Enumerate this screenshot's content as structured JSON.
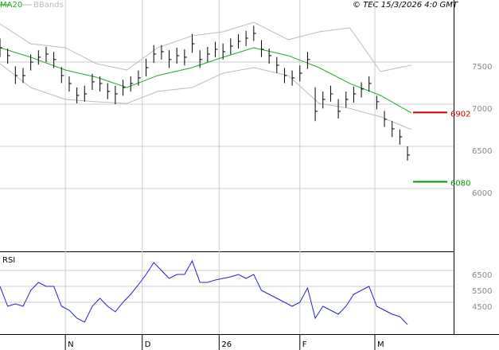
{
  "chart_data": [
    {
      "type": "ohlc",
      "note": "© TEC 15/3/2026 4:0 GMT",
      "x": [
        0,
        2,
        4,
        6,
        8,
        10,
        12,
        14,
        16,
        18,
        20,
        22,
        24,
        26,
        28,
        30,
        32,
        34,
        36,
        38,
        40,
        42,
        44,
        46,
        48,
        50,
        52,
        54,
        56,
        58,
        60,
        62,
        64,
        66,
        68,
        70,
        72,
        74,
        76,
        78,
        80,
        82,
        84,
        86,
        88,
        90,
        92,
        94,
        96,
        98,
        100,
        102,
        104,
        106
      ],
      "high": [
        7780,
        7660,
        7450,
        7430,
        7590,
        7640,
        7680,
        7620,
        7440,
        7330,
        7200,
        7220,
        7360,
        7330,
        7250,
        7220,
        7290,
        7330,
        7400,
        7540,
        7700,
        7700,
        7640,
        7670,
        7650,
        7830,
        7640,
        7680,
        7740,
        7720,
        7780,
        7830,
        7870,
        7930,
        7760,
        7660,
        7560,
        7430,
        7400,
        7460,
        7620,
        7200,
        7150,
        7220,
        7060,
        7150,
        7210,
        7260,
        7330,
        7100,
        6920,
        6800,
        6700,
        6500
      ],
      "low": [
        7560,
        7480,
        7240,
        7250,
        7400,
        7470,
        7500,
        7430,
        7250,
        7150,
        7010,
        7030,
        7170,
        7150,
        7060,
        7000,
        7100,
        7150,
        7220,
        7330,
        7490,
        7530,
        7430,
        7480,
        7460,
        7610,
        7430,
        7500,
        7560,
        7530,
        7590,
        7660,
        7690,
        7750,
        7560,
        7480,
        7370,
        7250,
        7220,
        7270,
        7420,
        6800,
        6950,
        7030,
        6830,
        6960,
        7020,
        7080,
        7150,
        6940,
        6730,
        6610,
        6520,
        6330
      ],
      "close": [
        7670,
        7576,
        7340,
        7340,
        7500,
        7557,
        7595,
        7530,
        7340,
        7246,
        7104,
        7123,
        7265,
        7246,
        7152,
        7123,
        7198,
        7246,
        7312,
        7434,
        7595,
        7623,
        7530,
        7576,
        7557,
        7717,
        7530,
        7595,
        7651,
        7623,
        7689,
        7746,
        7783,
        7840,
        7651,
        7576,
        7463,
        7340,
        7312,
        7368,
        7530,
        6916,
        7057,
        7123,
        6916,
        7057,
        7123,
        7180,
        7246,
        7029,
        6821,
        6708,
        6614,
        6397
      ],
      "series": [
        {
          "name": "MA20",
          "color": "#22aa22",
          "x": [
            0,
            8,
            17,
            25,
            33,
            41,
            50,
            58,
            66,
            75,
            83,
            91,
            99,
            107
          ],
          "values": [
            7670,
            7557,
            7406,
            7321,
            7198,
            7340,
            7434,
            7557,
            7670,
            7576,
            7434,
            7246,
            7104,
            6897
          ]
        },
        {
          "name": "BBands",
          "color": "#bbbbbb",
          "x": [
            0,
            8,
            17,
            25,
            33,
            41,
            50,
            58,
            66,
            75,
            83,
            91,
            99,
            107
          ],
          "upper": [
            7953,
            7717,
            7670,
            7482,
            7406,
            7670,
            7812,
            7859,
            7972,
            7765,
            7859,
            7906,
            7387,
            7463
          ],
          "lower": [
            7482,
            7198,
            7057,
            7029,
            7010,
            7152,
            7198,
            7368,
            7434,
            7340,
            7010,
            6950,
            6850,
            6700
          ]
        }
      ],
      "levels": [
        {
          "value": 6902,
          "color": "#cc0000"
        },
        {
          "value": 6080,
          "color": "#009900"
        }
      ],
      "xlim": [
        0,
        118
      ],
      "xticks": [
        {
          "value": 17,
          "label": "N"
        },
        {
          "value": 37,
          "label": "D"
        },
        {
          "value": 57,
          "label": "26"
        },
        {
          "value": 78,
          "label": "F"
        },
        {
          "value": 97.5,
          "label": "M"
        }
      ],
      "ylim": [
        5264,
        8236
      ],
      "yticks": [
        6000,
        6500,
        7000,
        7500
      ]
    },
    {
      "type": "line",
      "title": "RSI",
      "color": "#2222cc",
      "x": [
        0,
        2,
        4,
        6,
        8,
        10,
        12,
        14,
        16,
        18,
        20,
        22,
        24,
        26,
        28,
        30,
        32,
        34,
        36,
        38,
        40,
        42,
        44,
        46,
        48,
        50,
        52,
        54,
        56,
        58,
        60,
        62,
        64,
        66,
        68,
        70,
        72,
        74,
        76,
        78,
        80,
        82,
        84,
        86,
        88,
        90,
        92,
        94,
        96,
        98,
        100,
        102,
        104,
        106
      ],
      "values": [
        5500,
        4250,
        4400,
        4250,
        5250,
        5750,
        5500,
        5500,
        4250,
        4000,
        3500,
        3250,
        4250,
        4750,
        4250,
        3900,
        4500,
        5000,
        5600,
        6250,
        7000,
        6500,
        6000,
        6250,
        6250,
        7100,
        5750,
        5750,
        5900,
        6000,
        6100,
        6250,
        6000,
        6250,
        5250,
        5000,
        4750,
        4500,
        4250,
        4500,
        5400,
        3500,
        4250,
        4000,
        3750,
        4250,
        5000,
        5250,
        5500,
        4250,
        4000,
        3750,
        3600,
        3100
      ],
      "xlim": [
        0,
        118
      ],
      "ylim": [
        2500,
        7650
      ],
      "yticks": [
        4500,
        5500,
        6500
      ]
    }
  ]
}
